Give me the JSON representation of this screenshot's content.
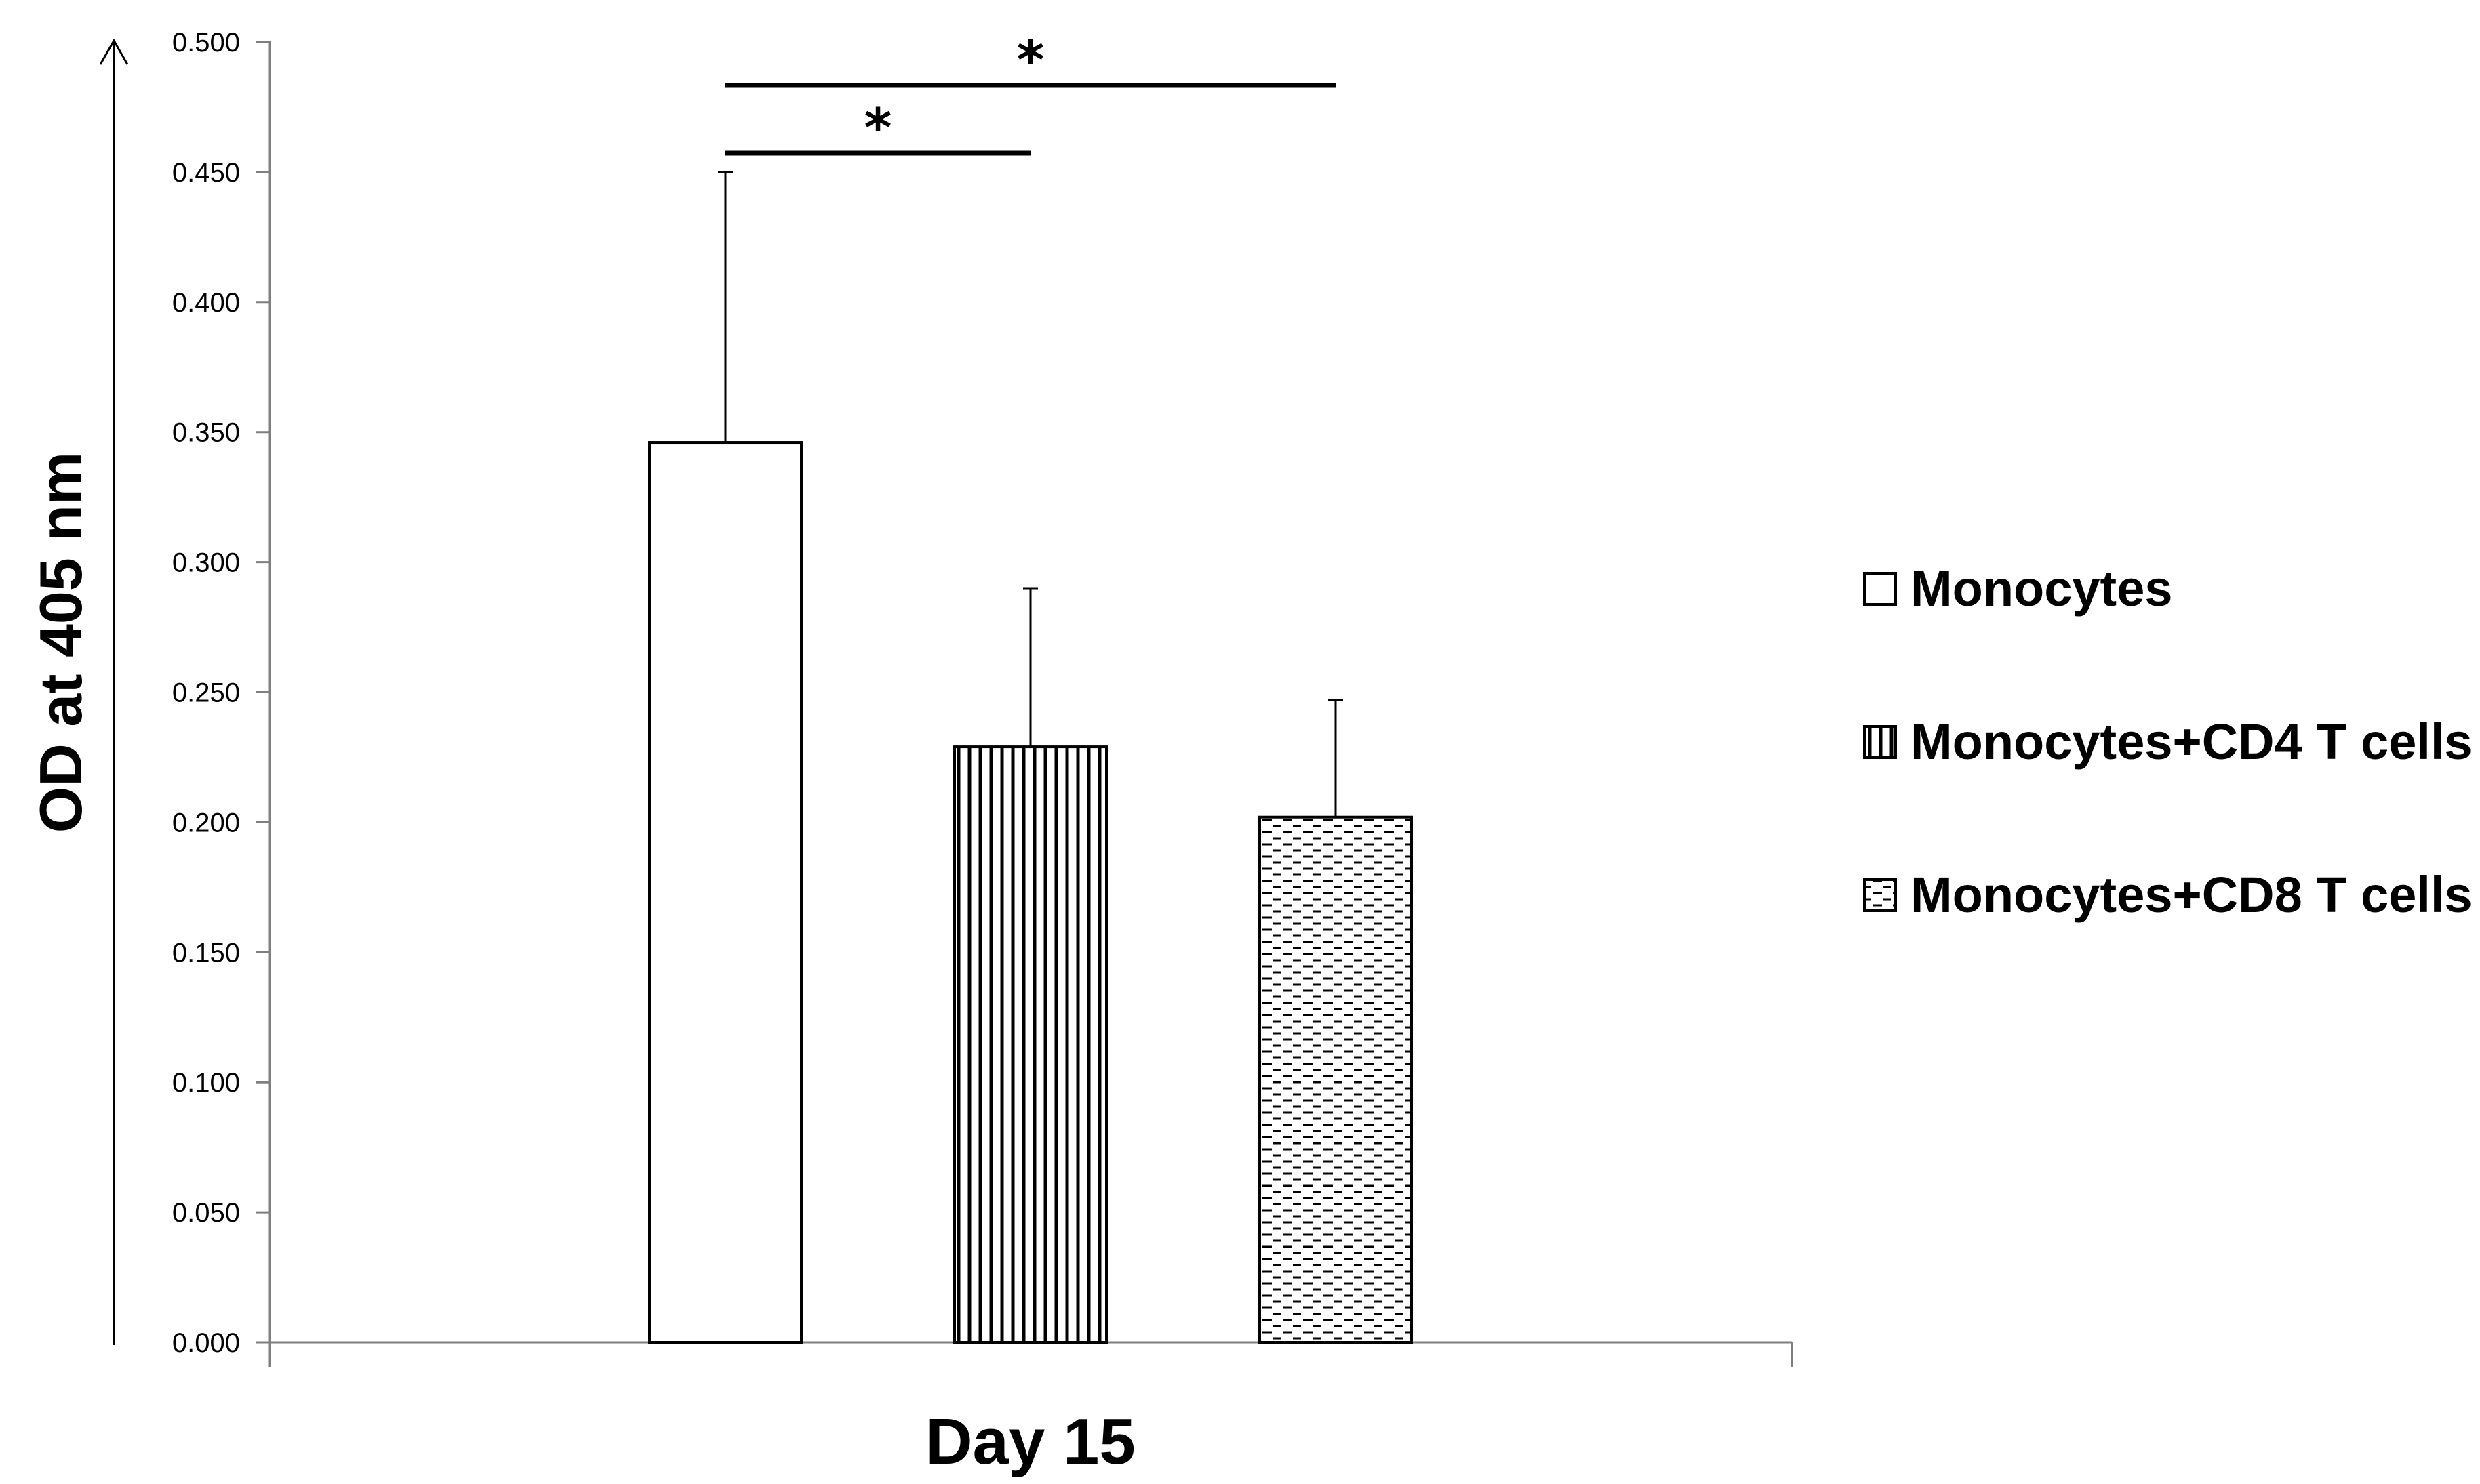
{
  "chart_data": {
    "type": "bar",
    "categories": [
      "Day 15"
    ],
    "xlabel": "Day 15",
    "ylabel": "OD at 405 nm",
    "ylim": [
      0,
      0.5
    ],
    "ytick_step": 0.05,
    "ytick_labels": [
      "0.000",
      "0.050",
      "0.100",
      "0.150",
      "0.200",
      "0.250",
      "0.300",
      "0.350",
      "0.400",
      "0.450",
      "0.500"
    ],
    "grid": false,
    "legend_position": "right",
    "series": [
      {
        "name": "Monocytes",
        "values": [
          0.346
        ],
        "error": [
          0.104
        ],
        "pattern": "none"
      },
      {
        "name": "Monocytes+CD4 T cells",
        "values": [
          0.229
        ],
        "error": [
          0.061
        ],
        "pattern": "vertical-lines"
      },
      {
        "name": "Monocytes+CD8 T cells",
        "values": [
          0.202
        ],
        "error": [
          0.045
        ],
        "pattern": "horizontal-dashes"
      }
    ],
    "significance": [
      {
        "from_series": 0,
        "to_series": 1,
        "label": "*"
      },
      {
        "from_series": 0,
        "to_series": 2,
        "label": "*"
      }
    ]
  }
}
